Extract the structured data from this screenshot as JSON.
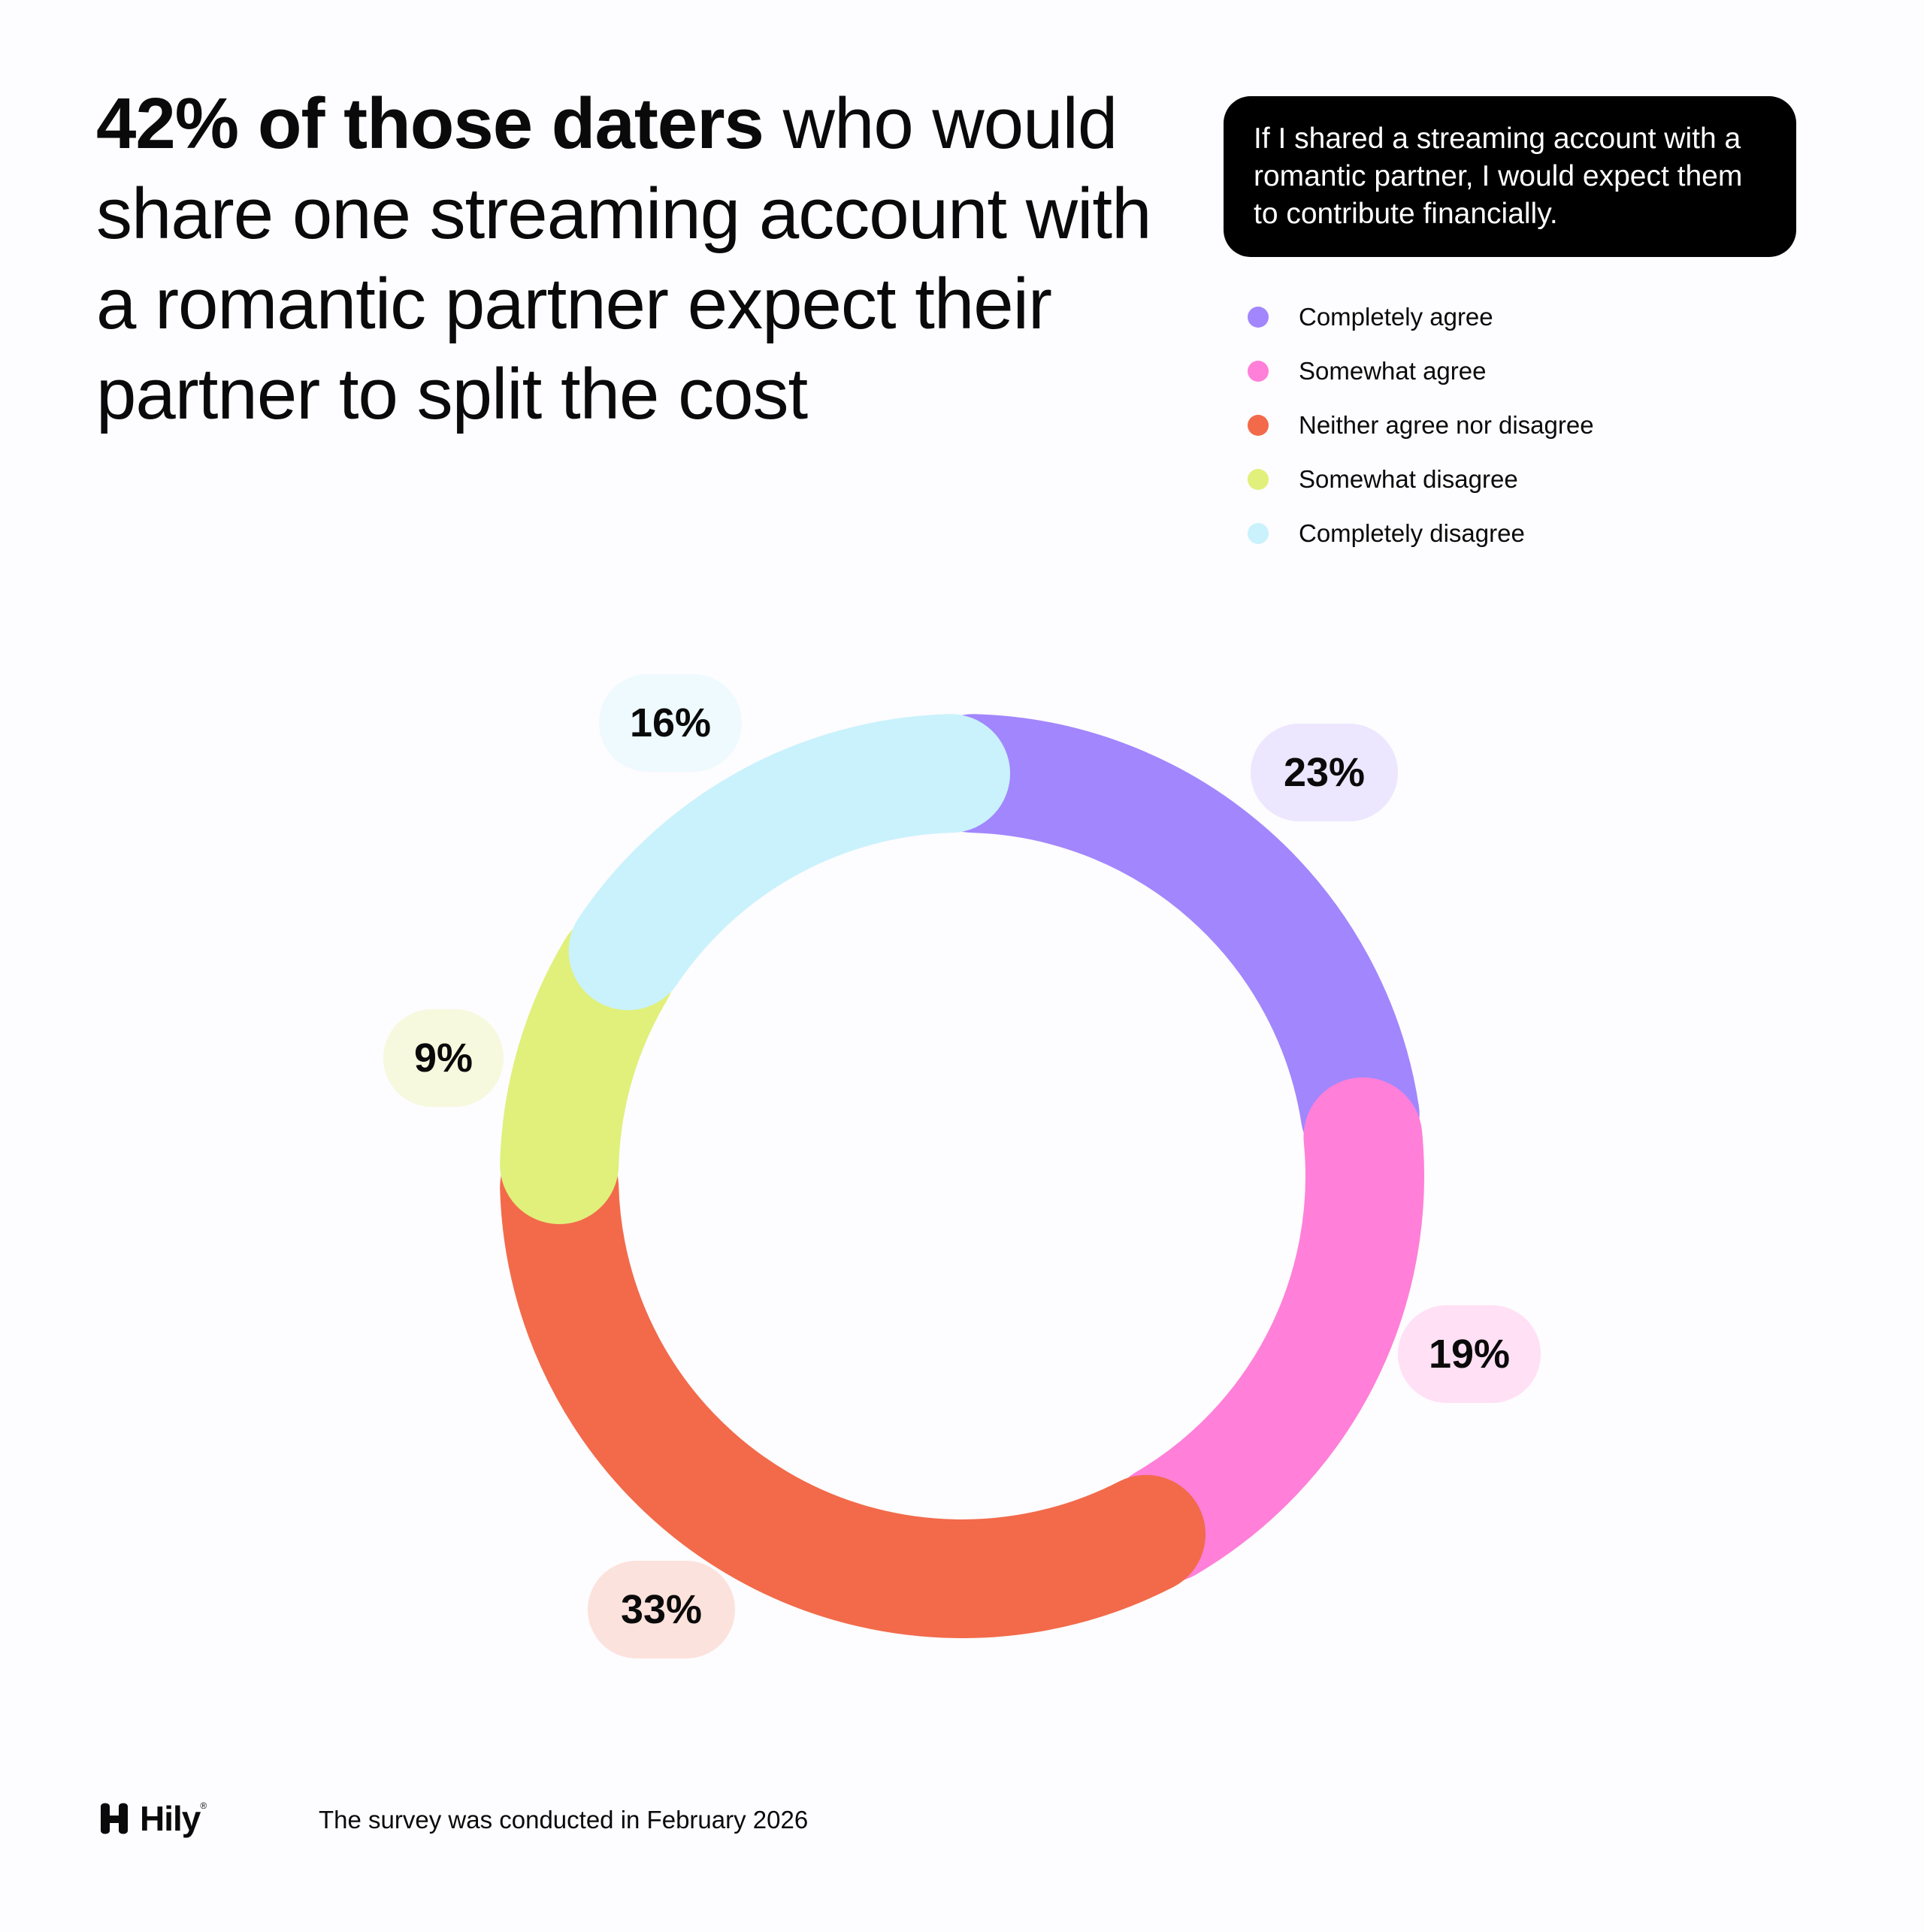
{
  "headline": {
    "bold": "42% of those daters",
    "regular": " who would share one streaming account with a romantic partner expect their partner to split the cost"
  },
  "question": "If I shared a streaming account with a romantic partner, I would expect them to contribute financially.",
  "footer": {
    "brand": "Hily",
    "brand_mark": "®",
    "note": "The survey was conducted in February 2026"
  },
  "chart_data": {
    "type": "pie",
    "categories": [
      "Completely agree",
      "Somewhat agree",
      "Neither agree nor disagree",
      "Somewhat disagree",
      "Completely disagree"
    ],
    "values": [
      23,
      19,
      33,
      9,
      16
    ],
    "value_labels": [
      "23%",
      "19%",
      "33%",
      "9%",
      "16%"
    ],
    "colors": [
      "#a286fd",
      "#ff7fd9",
      "#f26a4a",
      "#e0f07a",
      "#c9f2fc"
    ],
    "label_bg_colors": [
      "#ece6fe",
      "#ffe0f5",
      "#fce2dc",
      "#f6f9dd",
      "#eefafe"
    ],
    "legend_position": "top-right",
    "donut": true
  }
}
